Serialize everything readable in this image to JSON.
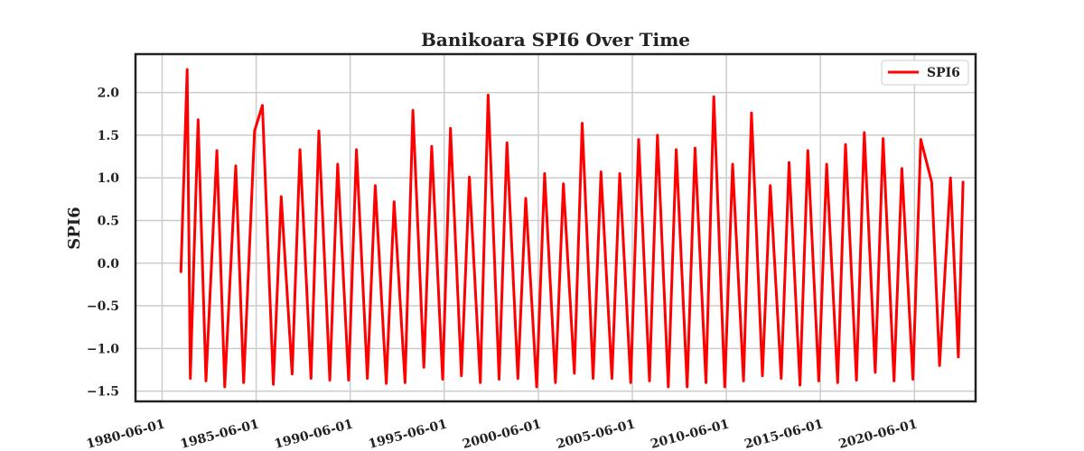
{
  "chart_data": {
    "type": "line",
    "title": "Banikoara SPI6 Over Time",
    "xlabel": "",
    "ylabel": "SPI6",
    "xlim": [
      "1979-01-01",
      "2023-09-01"
    ],
    "ylim": [
      -1.62,
      2.45
    ],
    "y_ticks": [
      -1.5,
      -1.0,
      -0.5,
      0.0,
      0.5,
      1.0,
      1.5,
      2.0
    ],
    "y_tick_labels": [
      "−1.5",
      "−1.0",
      "−0.5",
      "0.0",
      "0.5",
      "1.0",
      "1.5",
      "2.0"
    ],
    "x_ticks": [
      "1980-06-01",
      "1985-06-01",
      "1990-06-01",
      "1995-06-01",
      "2000-06-01",
      "2005-06-01",
      "2010-06-01",
      "2015-06-01",
      "2020-06-01"
    ],
    "grid": true,
    "legend_position": "top-right",
    "colors": {
      "line": "#ff0000",
      "grid": "#cccccc",
      "frame": "#222222",
      "text": "#222222"
    },
    "series": [
      {
        "name": "SPI6",
        "x": [
          "1981-06-01",
          "1981-10-01",
          "1981-12-01",
          "1982-05-01",
          "1982-10-01",
          "1983-05-01",
          "1983-10-01",
          "1984-05-01",
          "1984-10-01",
          "1985-05-01",
          "1985-10-01",
          "1986-05-01",
          "1986-10-01",
          "1987-05-01",
          "1987-10-01",
          "1988-05-01",
          "1988-10-01",
          "1989-05-01",
          "1989-10-01",
          "1990-05-01",
          "1990-10-01",
          "1991-05-01",
          "1991-10-01",
          "1992-05-01",
          "1992-10-01",
          "1993-05-01",
          "1993-10-01",
          "1994-05-01",
          "1994-10-01",
          "1995-05-01",
          "1995-10-01",
          "1996-05-01",
          "1996-10-01",
          "1997-05-01",
          "1997-10-01",
          "1998-05-01",
          "1998-10-01",
          "1999-05-01",
          "1999-10-01",
          "2000-05-01",
          "2000-10-01",
          "2001-05-01",
          "2001-10-01",
          "2002-05-01",
          "2002-10-01",
          "2003-05-01",
          "2003-10-01",
          "2004-05-01",
          "2004-10-01",
          "2005-05-01",
          "2005-10-01",
          "2006-05-01",
          "2006-10-01",
          "2007-05-01",
          "2007-10-01",
          "2008-05-01",
          "2008-10-01",
          "2009-05-01",
          "2009-10-01",
          "2010-05-01",
          "2010-10-01",
          "2011-05-01",
          "2011-10-01",
          "2012-05-01",
          "2012-10-01",
          "2013-05-01",
          "2013-10-01",
          "2014-05-01",
          "2014-10-01",
          "2015-05-01",
          "2015-10-01",
          "2016-05-01",
          "2016-10-01",
          "2017-05-01",
          "2017-10-01",
          "2018-05-01",
          "2018-10-01",
          "2019-05-01",
          "2019-10-01",
          "2020-05-01",
          "2020-10-01",
          "2021-05-01",
          "2021-10-01",
          "2022-05-01",
          "2022-10-01",
          "2023-01-01"
        ],
        "y": [
          -0.1,
          2.27,
          -1.35,
          1.68,
          -1.38,
          1.32,
          -1.45,
          1.14,
          -1.4,
          1.55,
          1.85,
          -1.42,
          0.78,
          -1.3,
          1.33,
          -1.35,
          1.55,
          -1.37,
          1.16,
          -1.37,
          1.33,
          -1.35,
          0.91,
          -1.41,
          0.72,
          -1.4,
          1.79,
          -1.22,
          1.37,
          -1.36,
          1.58,
          -1.32,
          1.01,
          -1.4,
          1.97,
          -1.36,
          1.41,
          -1.35,
          0.76,
          -1.45,
          1.05,
          -1.4,
          0.93,
          -1.29,
          1.64,
          -1.35,
          1.07,
          -1.35,
          1.05,
          -1.4,
          1.45,
          -1.38,
          1.5,
          -1.45,
          1.33,
          -1.45,
          1.35,
          -1.4,
          1.95,
          -1.45,
          1.16,
          -1.38,
          1.76,
          -1.32,
          0.91,
          -1.35,
          1.18,
          -1.43,
          1.32,
          -1.38,
          1.16,
          -1.4,
          1.39,
          -1.37,
          1.53,
          -1.28,
          1.46,
          -1.38,
          1.11,
          -1.36,
          1.45,
          0.95,
          -1.2,
          1.0,
          -1.1,
          0.95
        ]
      }
    ]
  }
}
